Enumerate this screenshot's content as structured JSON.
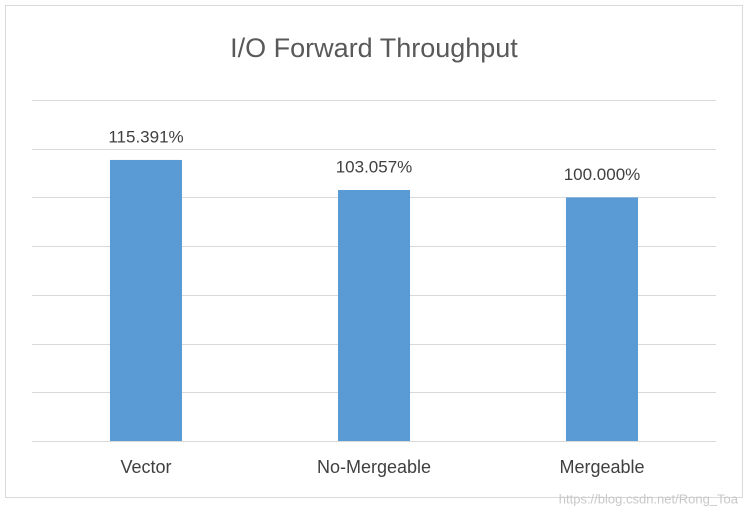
{
  "chart_data": {
    "type": "bar",
    "title": "I/O Forward Throughput",
    "categories": [
      "Vector",
      "No-Mergeable",
      "Mergeable"
    ],
    "values": [
      115.391,
      103.057,
      100.0
    ],
    "value_labels": [
      "115.391%",
      "103.057%",
      "100.000%"
    ],
    "color": "#5b9bd5",
    "ylim": [
      0,
      140
    ],
    "yticks": [
      0,
      20,
      40,
      60,
      80,
      100,
      120,
      140
    ],
    "grid": true,
    "watermark": "https://blog.csdn.net/Rong_Toa"
  }
}
